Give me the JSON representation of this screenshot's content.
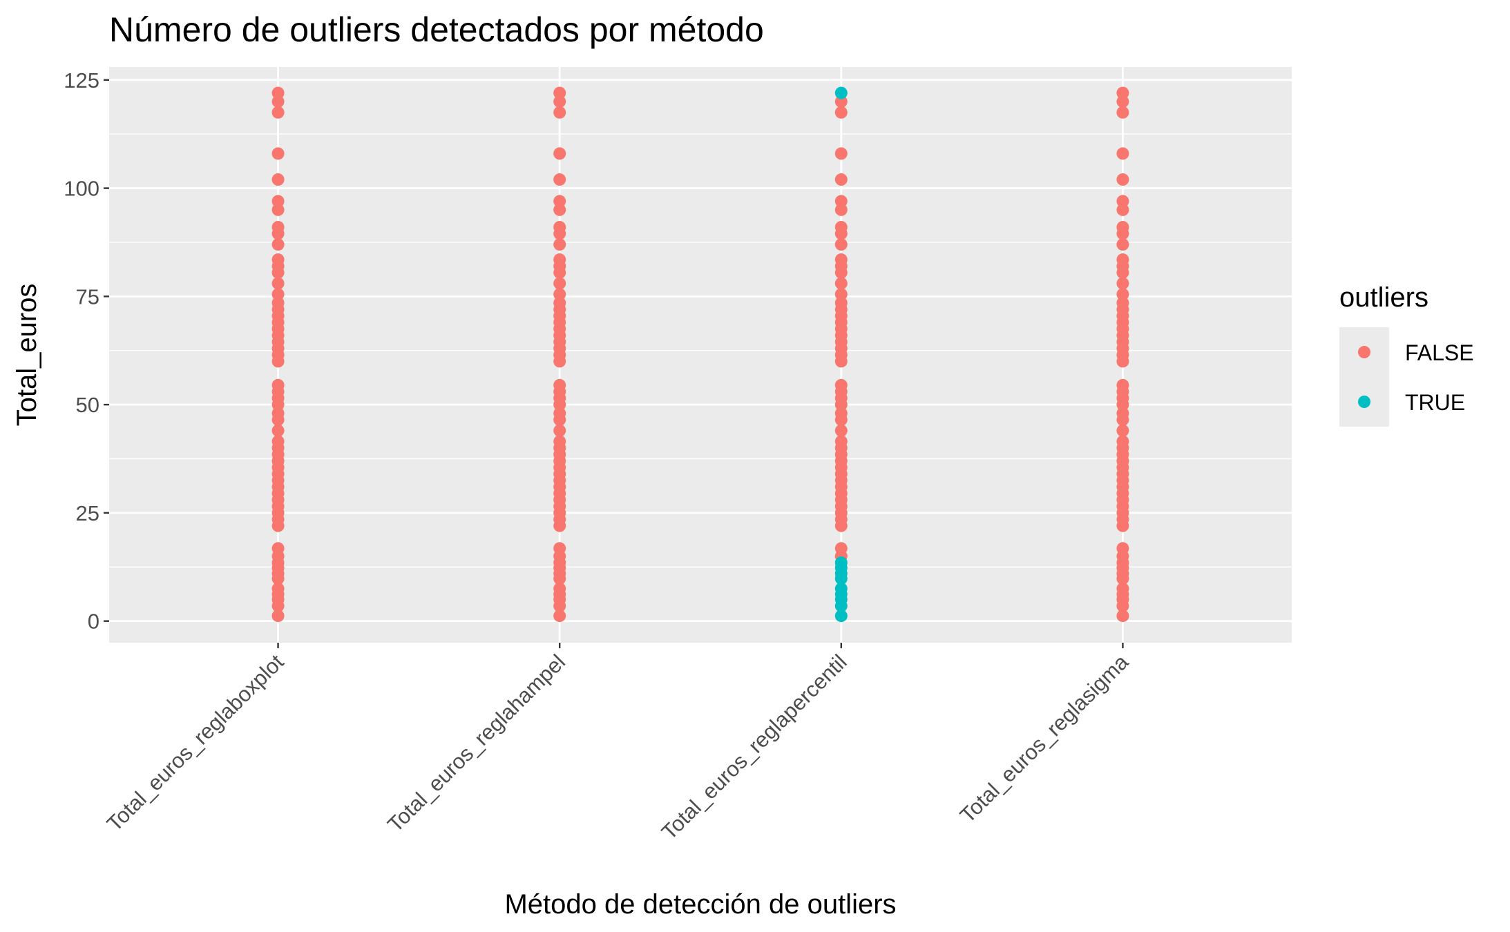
{
  "chart_data": {
    "type": "scatter",
    "title": "Número de outliers detectados por método",
    "xlabel": "Método de detección de outliers",
    "ylabel": "Total_euros",
    "categories": [
      "Total_euros_reglaboxplot",
      "Total_euros_reglahampel",
      "Total_euros_reglapercentil",
      "Total_euros_reglasigma"
    ],
    "ylim": [
      -5,
      128
    ],
    "y_ticks": [
      0,
      25,
      50,
      75,
      100,
      125
    ],
    "y_tick_labels": [
      "0",
      "25",
      "50",
      "75",
      "100",
      "125"
    ],
    "grid": true,
    "legend": {
      "title": "outliers",
      "position": "right",
      "entries": [
        {
          "label": "FALSE",
          "color": "#F8766D"
        },
        {
          "label": "TRUE",
          "color": "#00BFC4"
        }
      ]
    },
    "colors": {
      "FALSE": "#F8766D",
      "TRUE": "#00BFC4"
    },
    "y_values": [
      1.2,
      3.5,
      5.0,
      6.2,
      7.5,
      9.8,
      11.0,
      12.3,
      13.5,
      15.0,
      16.8,
      22.0,
      23.5,
      25.0,
      26.5,
      28.0,
      29.5,
      31.0,
      32.5,
      34.0,
      35.5,
      37.0,
      38.5,
      40.0,
      41.5,
      44.0,
      46.5,
      48.0,
      50.0,
      51.5,
      53.0,
      54.5,
      60.0,
      61.5,
      63.0,
      64.5,
      66.0,
      67.5,
      69.0,
      70.5,
      72.0,
      73.5,
      75.5,
      78.0,
      80.5,
      82.0,
      83.5,
      87.0,
      89.5,
      91.0,
      95.0,
      97.0,
      102.0,
      108.0,
      117.5,
      120.0,
      122.0
    ],
    "series": [
      {
        "category": "Total_euros_reglaboxplot",
        "true_values": []
      },
      {
        "category": "Total_euros_reglahampel",
        "true_values": []
      },
      {
        "category": "Total_euros_reglapercentil",
        "true_values": [
          1.2,
          3.5,
          5.0,
          6.2,
          7.5,
          9.8,
          11.0,
          12.3,
          13.5,
          122.0
        ]
      },
      {
        "category": "Total_euros_reglasigma",
        "true_values": []
      }
    ]
  }
}
